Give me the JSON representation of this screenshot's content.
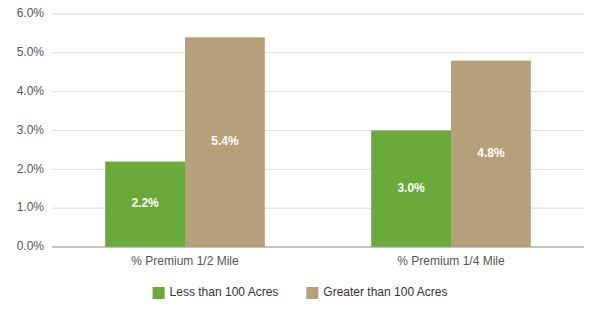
{
  "chart_data": {
    "type": "bar",
    "categories": [
      "% Premium 1/2 Mile",
      "% Premium 1/4 Mile"
    ],
    "series": [
      {
        "name": "Less than 100 Acres",
        "color": "#6aaa3a",
        "values": [
          2.2,
          3.0
        ],
        "value_labels": [
          "2.2%",
          "3.0%"
        ]
      },
      {
        "name": "Greater than 100 Acres",
        "color": "#b5a07a",
        "values": [
          5.4,
          4.8
        ],
        "value_labels": [
          "5.4%",
          "4.8%"
        ]
      }
    ],
    "ylim": [
      0,
      6.0
    ],
    "yticks": [
      {
        "value": 0.0,
        "label": "0.0%"
      },
      {
        "value": 1.0,
        "label": "1.0%"
      },
      {
        "value": 2.0,
        "label": "2.0%"
      },
      {
        "value": 3.0,
        "label": "3.0%"
      },
      {
        "value": 4.0,
        "label": "4.0%"
      },
      {
        "value": 5.0,
        "label": "5.0%"
      },
      {
        "value": 6.0,
        "label": "6.0%"
      }
    ],
    "grid": true,
    "data_labels": true,
    "legend": "bottom"
  }
}
